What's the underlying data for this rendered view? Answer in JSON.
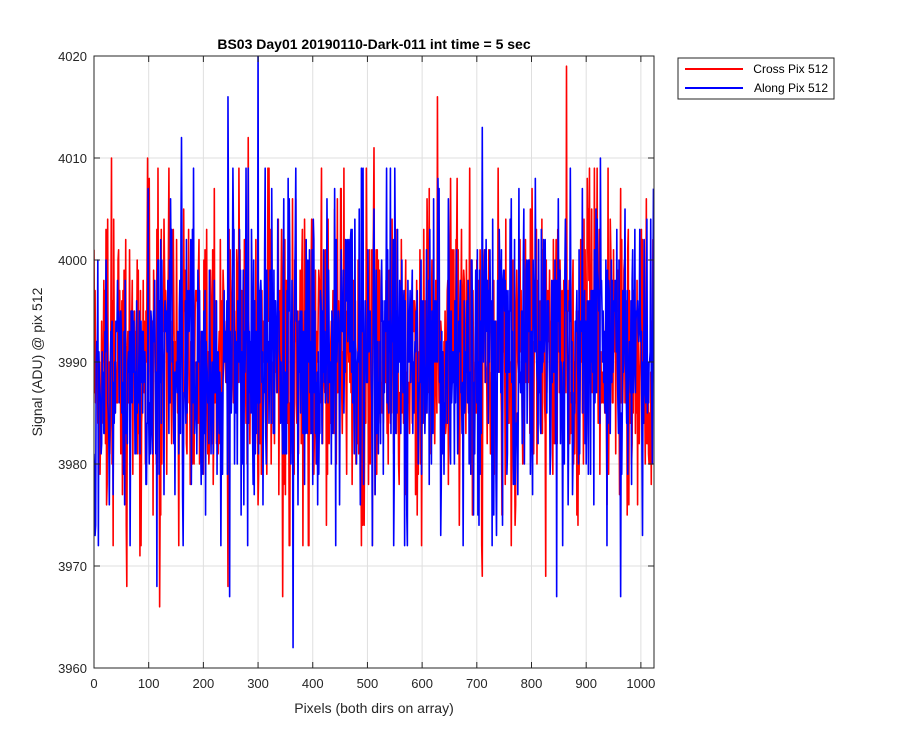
{
  "chart_data": {
    "type": "line",
    "title": "BS03 Day01 20190110-Dark-011 int time = 5 sec",
    "xlabel": "Pixels (both dirs on array)",
    "ylabel": "Signal (ADU) @ pix 512",
    "xlim": [
      0,
      1024
    ],
    "ylim": [
      3960,
      4020
    ],
    "xticks": [
      0,
      100,
      200,
      300,
      400,
      500,
      600,
      700,
      800,
      900,
      1000
    ],
    "yticks": [
      3960,
      3970,
      3980,
      3990,
      4000,
      4010,
      4020
    ],
    "grid": true,
    "legend_position": "outside-top-right",
    "noise": {
      "points_per_series": 1024,
      "center": 3991,
      "typical_range": [
        3975,
        4006
      ],
      "note_type": "dark-frame readout noise"
    },
    "series": [
      {
        "name": "Cross Pix 512",
        "color": "#ff0000",
        "seed": 73,
        "extremes": [
          {
            "x": 32,
            "y": 4010
          },
          {
            "x": 60,
            "y": 3968
          },
          {
            "x": 84,
            "y": 3971
          },
          {
            "x": 98,
            "y": 4010
          },
          {
            "x": 120,
            "y": 3966
          },
          {
            "x": 137,
            "y": 4009
          },
          {
            "x": 155,
            "y": 3972
          },
          {
            "x": 245,
            "y": 3968
          },
          {
            "x": 282,
            "y": 4012
          },
          {
            "x": 345,
            "y": 3967
          },
          {
            "x": 392,
            "y": 3972
          },
          {
            "x": 512,
            "y": 4011
          },
          {
            "x": 628,
            "y": 4016
          },
          {
            "x": 710,
            "y": 3969
          },
          {
            "x": 826,
            "y": 3969
          },
          {
            "x": 864,
            "y": 4019
          },
          {
            "x": 975,
            "y": 3975
          }
        ]
      },
      {
        "name": "Along Pix 512",
        "color": "#0000ff",
        "seed": 211,
        "extremes": [
          {
            "x": 3,
            "y": 3974
          },
          {
            "x": 115,
            "y": 3968
          },
          {
            "x": 160,
            "y": 4012
          },
          {
            "x": 245,
            "y": 4016
          },
          {
            "x": 248,
            "y": 3967
          },
          {
            "x": 300,
            "y": 4022
          },
          {
            "x": 364,
            "y": 3962
          },
          {
            "x": 442,
            "y": 3972
          },
          {
            "x": 710,
            "y": 4013
          },
          {
            "x": 846,
            "y": 3967
          },
          {
            "x": 926,
            "y": 4010
          },
          {
            "x": 963,
            "y": 3967
          }
        ]
      }
    ]
  }
}
